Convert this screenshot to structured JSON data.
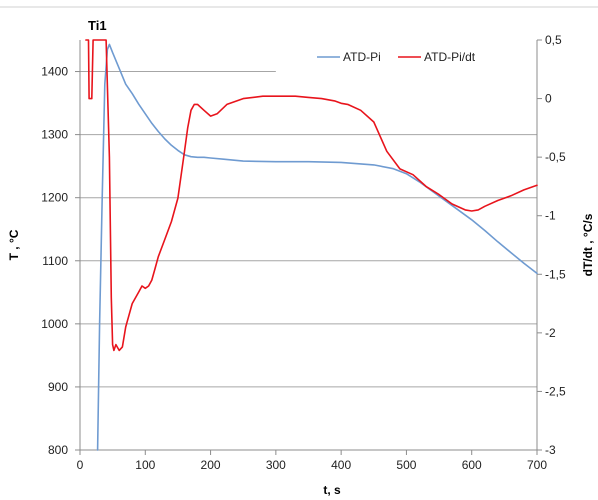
{
  "chart_data": {
    "type": "line",
    "title": "Ti1",
    "xlabel": "t, s",
    "ylabel_left": "T , °C",
    "ylabel_right": "dT/dt , °C/s",
    "xlim": [
      0,
      700
    ],
    "ylim_left": [
      800,
      1450
    ],
    "ylim_right": [
      -3,
      0.5
    ],
    "x_ticks": [
      "0",
      "100",
      "200",
      "300",
      "400",
      "500",
      "600",
      "700"
    ],
    "y_ticks_left": [
      "800",
      "900",
      "1000",
      "1100",
      "1200",
      "1300",
      "1400"
    ],
    "y_ticks_right": [
      "0,5",
      "0",
      "-0,5",
      "-1",
      "-1,5",
      "-2",
      "-2,5",
      "-3"
    ],
    "grid": "horizontal",
    "legend_position": "top-right",
    "series": [
      {
        "name": "ATD-Pi",
        "axis": "left",
        "color": "#6f9bd1",
        "x": [
          27,
          30,
          34,
          38,
          42,
          45,
          50,
          60,
          70,
          80,
          90,
          100,
          110,
          120,
          130,
          140,
          150,
          160,
          170,
          180,
          190,
          200,
          220,
          250,
          300,
          350,
          400,
          450,
          480,
          500,
          520,
          540,
          560,
          580,
          600,
          620,
          640,
          660,
          680,
          700
        ],
        "y": [
          800,
          1000,
          1200,
          1380,
          1435,
          1443,
          1430,
          1405,
          1380,
          1365,
          1348,
          1333,
          1318,
          1305,
          1293,
          1283,
          1275,
          1268,
          1265,
          1264,
          1264,
          1263,
          1261,
          1258,
          1257,
          1257,
          1256,
          1252,
          1246,
          1238,
          1225,
          1210,
          1195,
          1180,
          1165,
          1148,
          1130,
          1113,
          1096,
          1080
        ]
      },
      {
        "name": "ATD-Pi/dt",
        "axis": "right",
        "color": "#e8141c",
        "x": [
          9,
          13,
          14,
          16,
          18,
          20,
          40,
          45,
          48,
          50,
          52,
          55,
          60,
          65,
          70,
          80,
          90,
          95,
          100,
          105,
          110,
          115,
          120,
          130,
          140,
          150,
          160,
          165,
          170,
          175,
          180,
          190,
          200,
          210,
          225,
          250,
          280,
          300,
          330,
          350,
          370,
          390,
          400,
          410,
          430,
          450,
          470,
          490,
          510,
          530,
          550,
          570,
          590,
          600,
          610,
          620,
          640,
          660,
          680,
          700
        ],
        "y": [
          0.5,
          0.5,
          0.0,
          0.0,
          0.0,
          0.5,
          0.5,
          -0.5,
          -1.7,
          -2.1,
          -2.15,
          -2.1,
          -2.15,
          -2.12,
          -1.95,
          -1.75,
          -1.65,
          -1.6,
          -1.62,
          -1.6,
          -1.55,
          -1.45,
          -1.35,
          -1.2,
          -1.05,
          -0.85,
          -0.45,
          -0.25,
          -0.1,
          -0.05,
          -0.05,
          -0.1,
          -0.15,
          -0.13,
          -0.05,
          0.0,
          0.02,
          0.02,
          0.02,
          0.01,
          0.0,
          -0.02,
          -0.04,
          -0.05,
          -0.1,
          -0.2,
          -0.45,
          -0.6,
          -0.65,
          -0.75,
          -0.82,
          -0.9,
          -0.95,
          -0.96,
          -0.95,
          -0.92,
          -0.87,
          -0.83,
          -0.78,
          -0.74
        ]
      }
    ]
  }
}
